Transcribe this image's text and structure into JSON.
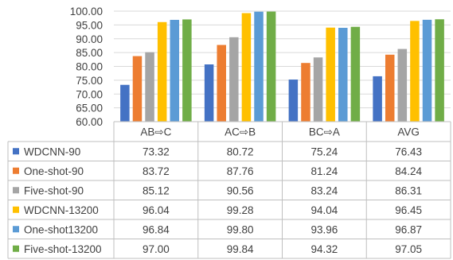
{
  "chart_data": {
    "type": "bar",
    "categories": [
      "AB⇨C",
      "AC⇨B",
      "BC⇨A",
      "AVG"
    ],
    "series": [
      {
        "name": "WDCNN-90",
        "color": "#4472C4",
        "values": [
          73.32,
          80.72,
          75.24,
          76.43
        ],
        "labels": [
          "73.32",
          "80.72",
          "75.24",
          "76.43"
        ]
      },
      {
        "name": "One-shot-90",
        "color": "#ED7D31",
        "values": [
          83.72,
          87.76,
          81.24,
          84.24
        ],
        "labels": [
          "83.72",
          "87.76",
          "81.24",
          "84.24"
        ]
      },
      {
        "name": "Five-shot-90",
        "color": "#A5A5A5",
        "values": [
          85.12,
          90.56,
          83.24,
          86.31
        ],
        "labels": [
          "85.12",
          "90.56",
          "83.24",
          "86.31"
        ]
      },
      {
        "name": "WDCNN-13200",
        "color": "#FFC000",
        "values": [
          96.04,
          99.28,
          94.04,
          96.45
        ],
        "labels": [
          "96.04",
          "99.28",
          "94.04",
          "96.45"
        ]
      },
      {
        "name": "One-shot13200",
        "color": "#5B9BD5",
        "values": [
          96.84,
          99.8,
          93.96,
          96.87
        ],
        "labels": [
          "96.84",
          "99.80",
          "93.96",
          "96.87"
        ]
      },
      {
        "name": "Five-shot-13200",
        "color": "#70AD47",
        "values": [
          97.0,
          99.84,
          94.32,
          97.05
        ],
        "labels": [
          "97.00",
          "99.84",
          "94.32",
          "97.05"
        ]
      }
    ],
    "ylim": [
      60,
      100
    ],
    "yticks": [
      "100.00",
      "95.00",
      "90.00",
      "85.00",
      "80.00",
      "75.00",
      "70.00",
      "65.00",
      "60.00"
    ],
    "ytick_values": [
      100,
      95,
      90,
      85,
      80,
      75,
      70,
      65,
      60
    ],
    "grid": true,
    "legend": "data-table-below"
  }
}
